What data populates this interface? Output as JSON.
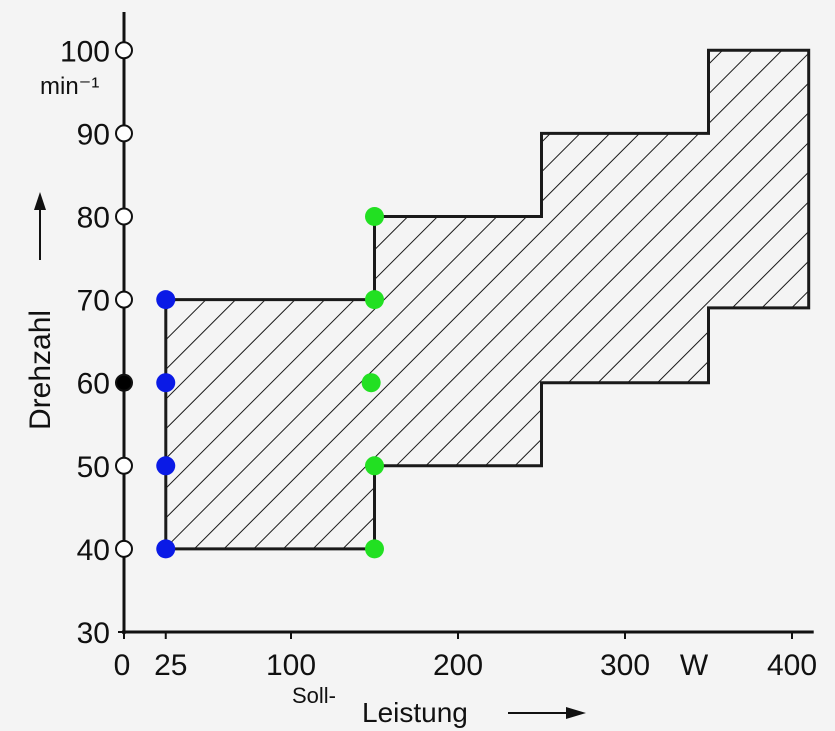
{
  "chart_data": {
    "type": "area",
    "xlabel_prefix": "Soll-",
    "xlabel": "Leistung",
    "ylabel": "Drehzahl",
    "y_unit": "min⁻¹",
    "x_unit_label": "W",
    "xlim": [
      0,
      410
    ],
    "ylim": [
      30,
      100
    ],
    "x_ticks": [
      0,
      25,
      100,
      200,
      300,
      400
    ],
    "y_ticks": [
      30,
      40,
      50,
      60,
      70,
      80,
      90,
      100
    ],
    "hatch": true,
    "upper_boundary": [
      [
        25,
        70
      ],
      [
        150,
        70
      ],
      [
        150,
        80
      ],
      [
        250,
        80
      ],
      [
        250,
        90
      ],
      [
        350,
        90
      ],
      [
        350,
        100
      ],
      [
        410,
        100
      ]
    ],
    "lower_boundary": [
      [
        25,
        40
      ],
      [
        150,
        40
      ],
      [
        150,
        50
      ],
      [
        250,
        50
      ],
      [
        250,
        60
      ],
      [
        350,
        60
      ],
      [
        350,
        69
      ],
      [
        410,
        69
      ]
    ],
    "y_axis_markers": [
      {
        "y": 40,
        "fill": "#ffffff"
      },
      {
        "y": 50,
        "fill": "#ffffff"
      },
      {
        "y": 60,
        "fill": "#000000"
      },
      {
        "y": 70,
        "fill": "#ffffff"
      },
      {
        "y": 80,
        "fill": "#ffffff"
      },
      {
        "y": 90,
        "fill": "#ffffff"
      },
      {
        "y": 100,
        "fill": "#ffffff"
      }
    ],
    "points": [
      {
        "x": 25,
        "y": 40,
        "color": "#0a1ae6"
      },
      {
        "x": 25,
        "y": 50,
        "color": "#0a1ae6"
      },
      {
        "x": 25,
        "y": 60,
        "color": "#0a1ae6"
      },
      {
        "x": 25,
        "y": 70,
        "color": "#0a1ae6"
      },
      {
        "x": 150,
        "y": 40,
        "color": "#22e022"
      },
      {
        "x": 150,
        "y": 50,
        "color": "#22e022"
      },
      {
        "x": 148,
        "y": 60,
        "color": "#22e022"
      },
      {
        "x": 150,
        "y": 70,
        "color": "#22e022"
      },
      {
        "x": 150,
        "y": 80,
        "color": "#22e022"
      }
    ]
  }
}
